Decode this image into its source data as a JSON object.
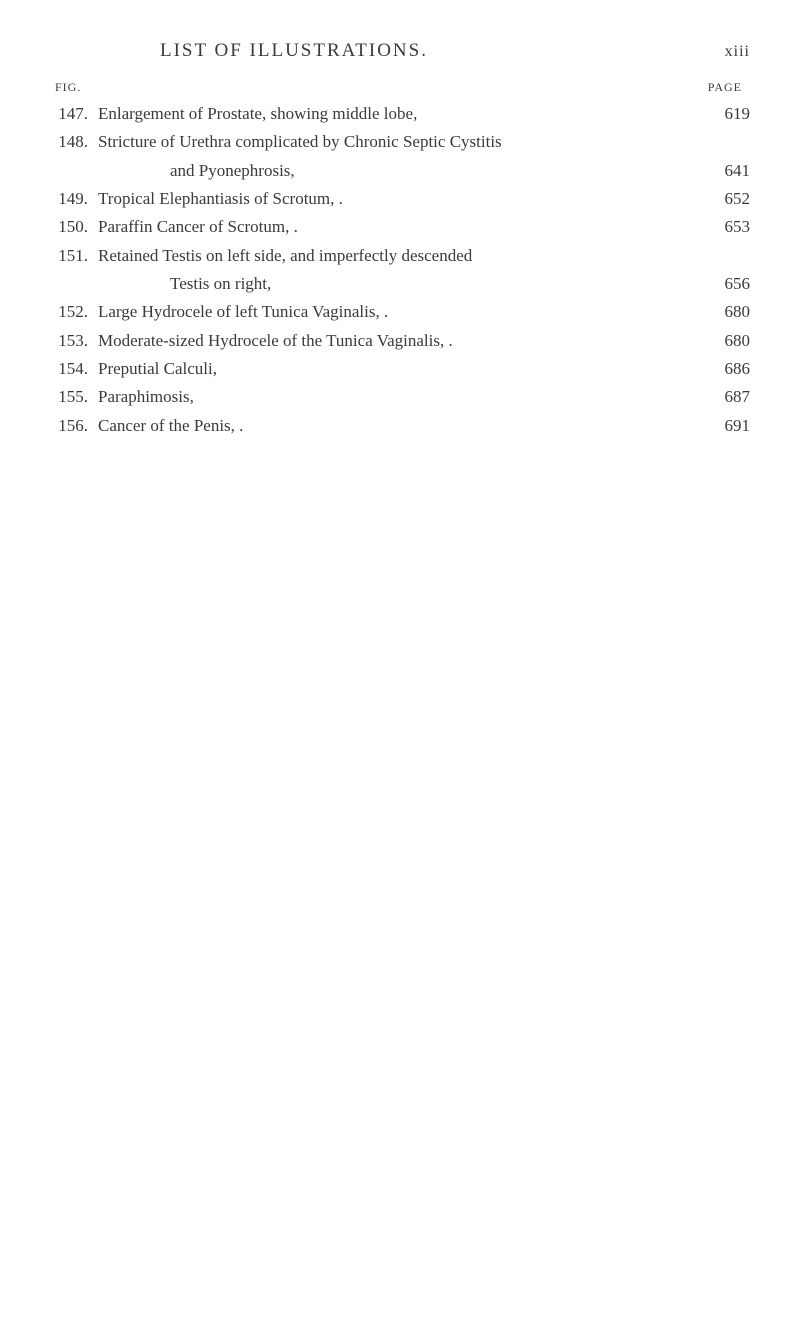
{
  "header": {
    "title": "LIST OF ILLUSTRATIONS.",
    "roman_page": "xiii"
  },
  "column_labels": {
    "fig": "FIG.",
    "page": "PAGE"
  },
  "entries": [
    {
      "num": "147.",
      "lines": [
        "Enlargement of Prostate, showing middle lobe,"
      ],
      "page": "619"
    },
    {
      "num": "148.",
      "lines": [
        "Stricture of Urethra complicated by Chronic Septic Cystitis",
        "and Pyonephrosis,"
      ],
      "page": "641"
    },
    {
      "num": "149.",
      "lines": [
        "Tropical Elephantiasis of Scrotum, ."
      ],
      "page": "652"
    },
    {
      "num": "150.",
      "lines": [
        "Paraffin Cancer of Scrotum, ."
      ],
      "page": "653"
    },
    {
      "num": "151.",
      "lines": [
        "Retained Testis on left side, and imperfectly descended",
        "Testis on right,"
      ],
      "page": "656"
    },
    {
      "num": "152.",
      "lines": [
        "Large Hydrocele of left Tunica Vaginalis, ."
      ],
      "page": "680"
    },
    {
      "num": "153.",
      "lines": [
        "Moderate-sized Hydrocele of the Tunica Vaginalis, ."
      ],
      "page": "680"
    },
    {
      "num": "154.",
      "lines": [
        "Preputial Calculi,"
      ],
      "page": "686"
    },
    {
      "num": "155.",
      "lines": [
        "Paraphimosis,"
      ],
      "page": "687"
    },
    {
      "num": "156.",
      "lines": [
        "Cancer of the Penis, ."
      ],
      "page": "691"
    }
  ]
}
